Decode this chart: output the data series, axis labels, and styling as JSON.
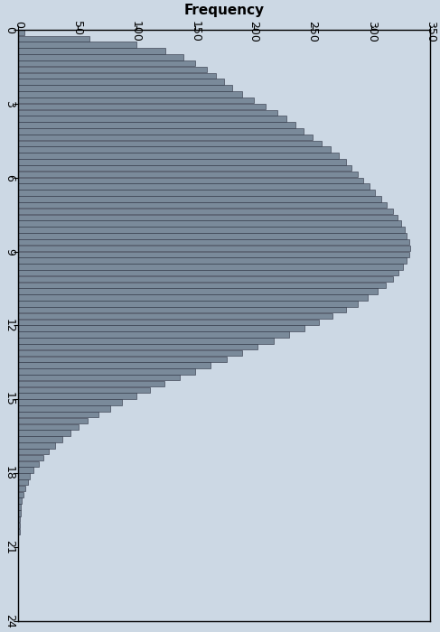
{
  "title": "Frequency",
  "xlim": [
    0,
    350
  ],
  "ylim": [
    0,
    24
  ],
  "yticks": [
    0,
    3,
    6,
    9,
    12,
    15,
    18,
    21,
    24
  ],
  "xticks": [
    0,
    50,
    100,
    150,
    200,
    250,
    300,
    350
  ],
  "bar_color": "#7a8a9a",
  "bar_edge_color": "#2a3040",
  "background_color": "#ccd8e4",
  "bin_width": 0.25,
  "frequencies": [
    5,
    60,
    100,
    125,
    140,
    150,
    160,
    168,
    175,
    182,
    190,
    200,
    210,
    220,
    228,
    235,
    242,
    250,
    258,
    265,
    272,
    278,
    283,
    288,
    293,
    298,
    303,
    308,
    313,
    318,
    322,
    325,
    328,
    330,
    332,
    333,
    332,
    330,
    327,
    323,
    318,
    312,
    305,
    297,
    288,
    278,
    267,
    255,
    243,
    230,
    217,
    203,
    190,
    177,
    163,
    150,
    137,
    124,
    112,
    100,
    88,
    78,
    68,
    59,
    51,
    44,
    37,
    31,
    26,
    21,
    17,
    13,
    10,
    8,
    6,
    4,
    3,
    2,
    2,
    1,
    1,
    1,
    0,
    0,
    0,
    0,
    0,
    0,
    0,
    0,
    0,
    0,
    0,
    0,
    0,
    0
  ],
  "title_fontsize": 11,
  "tick_fontsize": 9
}
